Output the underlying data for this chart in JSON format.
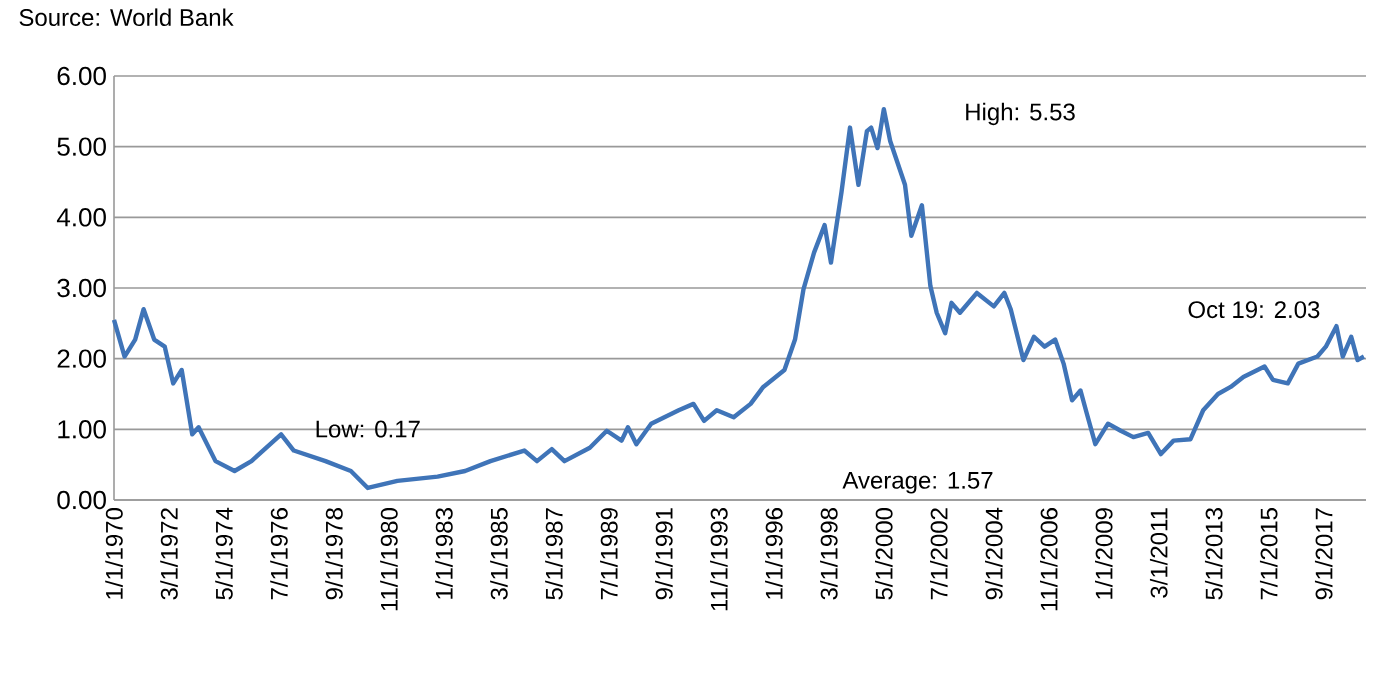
{
  "chart_data": {
    "type": "line",
    "annotations": [
      "Source: World Bank",
      {
        "text": "Low: 0.17",
        "x": "1980-01",
        "y": 0.17
      },
      "High: 5.53",
      {
        "text": "Oct 19: 2.03",
        "x": "2019-04",
        "y": 2.03
      },
      "Average: 1.57"
    ],
    "x": [
      "1970-01",
      "1970-06",
      "1970-11",
      "1971-03",
      "1971-08",
      "1972-01",
      "1972-05",
      "1972-09",
      "1973-02",
      "1973-05",
      "1974-01",
      "1974-10",
      "1975-06",
      "1976-08",
      "1977-02",
      "1978-05",
      "1979-05",
      "1980-01",
      "1981-03",
      "1982-10",
      "1983-11",
      "1984-11",
      "1986-03",
      "1986-09",
      "1987-04",
      "1987-10",
      "1988-10",
      "1989-06",
      "1990-01",
      "1990-04",
      "1990-08",
      "1991-03",
      "1992-04",
      "1992-11",
      "1993-04",
      "1993-10",
      "1994-06",
      "1995-02",
      "1995-08",
      "1996-06",
      "1996-11",
      "1997-03",
      "1997-08",
      "1998-01",
      "1998-04",
      "1998-09",
      "1999-01",
      "1999-05",
      "1999-09",
      "1999-11",
      "2000-02",
      "2000-05",
      "2000-08",
      "2001-03",
      "2001-06",
      "2001-11",
      "2002-03",
      "2002-06",
      "2002-10",
      "2003-01",
      "2003-05",
      "2004-01",
      "2004-09",
      "2005-02",
      "2005-05",
      "2005-11",
      "2006-04",
      "2006-09",
      "2007-02",
      "2007-06",
      "2007-10",
      "2008-02",
      "2008-05",
      "2008-09",
      "2009-03",
      "2009-09",
      "2010-03",
      "2010-10",
      "2011-04",
      "2011-10",
      "2012-06",
      "2012-12",
      "2013-07",
      "2014-01",
      "2014-07",
      "2015-05",
      "2015-09",
      "2016-04",
      "2016-09",
      "2017-06",
      "2017-10",
      "2018-03",
      "2018-06",
      "2018-10",
      "2019-01",
      "2019-04"
    ],
    "series": [
      {
        "color": "#3f74b8",
        "values": [
          2.55,
          2.03,
          2.27,
          2.7,
          2.27,
          2.17,
          1.65,
          1.84,
          0.93,
          1.03,
          0.55,
          0.41,
          0.55,
          0.93,
          0.7,
          0.55,
          0.41,
          0.17,
          0.27,
          0.33,
          0.41,
          0.55,
          0.7,
          0.55,
          0.72,
          0.55,
          0.74,
          0.98,
          0.84,
          1.03,
          0.79,
          1.08,
          1.27,
          1.36,
          1.12,
          1.27,
          1.17,
          1.36,
          1.6,
          1.84,
          2.27,
          2.98,
          3.5,
          3.89,
          3.36,
          4.36,
          5.27,
          4.46,
          5.22,
          5.27,
          4.98,
          5.53,
          5.08,
          4.46,
          3.74,
          4.17,
          3.03,
          2.65,
          2.36,
          2.79,
          2.65,
          2.93,
          2.74,
          2.93,
          2.7,
          1.98,
          2.31,
          2.17,
          2.27,
          1.93,
          1.41,
          1.55,
          1.22,
          0.79,
          1.08,
          0.98,
          0.89,
          0.95,
          0.65,
          0.84,
          0.86,
          1.27,
          1.5,
          1.6,
          1.74,
          1.89,
          1.7,
          1.65,
          1.93,
          2.03,
          2.17,
          2.46,
          2.03,
          2.31,
          1.98,
          2.03
        ]
      }
    ],
    "xlim": [
      "1970-01",
      "2019-05"
    ],
    "xticks": [
      {
        "value": "1970-01",
        "label": "1/1/1970"
      },
      {
        "value": "1972-03",
        "label": "3/1/1972"
      },
      {
        "value": "1974-05",
        "label": "5/1/1974"
      },
      {
        "value": "1976-07",
        "label": "7/1/1976"
      },
      {
        "value": "1978-09",
        "label": "9/1/1978"
      },
      {
        "value": "1980-11",
        "label": "11/1/1980"
      },
      {
        "value": "1983-01",
        "label": "1/1/1983"
      },
      {
        "value": "1985-03",
        "label": "3/1/1985"
      },
      {
        "value": "1987-05",
        "label": "5/1/1987"
      },
      {
        "value": "1989-07",
        "label": "7/1/1989"
      },
      {
        "value": "1991-09",
        "label": "9/1/1991"
      },
      {
        "value": "1993-11",
        "label": "11/1/1993"
      },
      {
        "value": "1996-01",
        "label": "1/1/1996"
      },
      {
        "value": "1998-03",
        "label": "3/1/1998"
      },
      {
        "value": "2000-05",
        "label": "5/1/2000"
      },
      {
        "value": "2002-07",
        "label": "7/1/2002"
      },
      {
        "value": "2004-09",
        "label": "9/1/2004"
      },
      {
        "value": "2006-11",
        "label": "11/1/2006"
      },
      {
        "value": "2009-01",
        "label": "1/1/2009"
      },
      {
        "value": "2011-03",
        "label": "3/1/2011"
      },
      {
        "value": "2013-05",
        "label": "5/1/2013"
      },
      {
        "value": "2015-07",
        "label": "7/1/2015"
      },
      {
        "value": "2017-09",
        "label": "9/1/2017"
      }
    ],
    "ylim": [
      0,
      6
    ],
    "yticks": [
      {
        "value": 0,
        "label": "0.00"
      },
      {
        "value": 1,
        "label": "1.00"
      },
      {
        "value": 2,
        "label": "2.00"
      },
      {
        "value": 3,
        "label": "3.00"
      },
      {
        "value": 4,
        "label": "4.00"
      },
      {
        "value": 5,
        "label": "5.00"
      },
      {
        "value": 6,
        "label": "6.00"
      }
    ],
    "grid": "y",
    "marker": "none",
    "line_style": "solid"
  }
}
